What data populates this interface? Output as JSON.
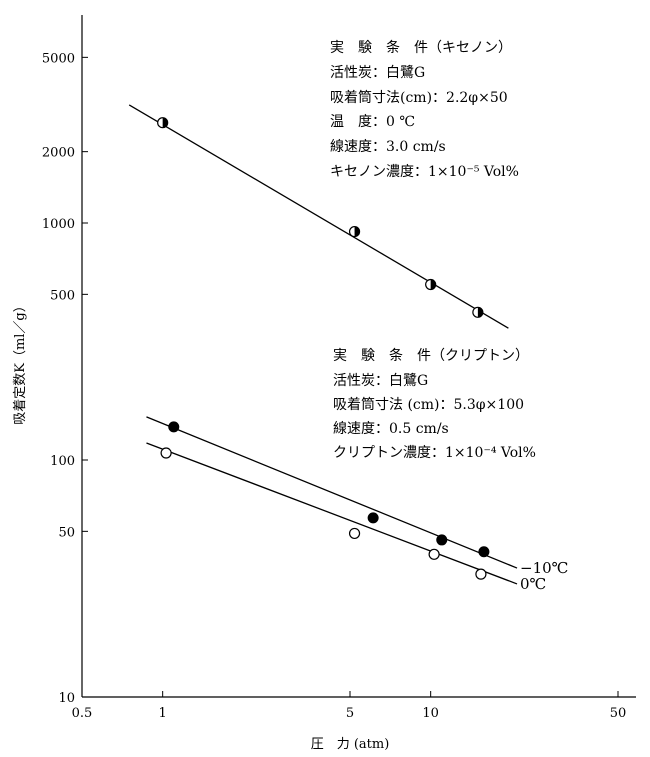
{
  "chart_data": {
    "type": "scatter",
    "title": "",
    "xlabel": "圧　力 (atm)",
    "ylabel": "吸着定数K（ml／g）",
    "x_scale": "log",
    "y_scale": "log",
    "xlim": [
      0.5,
      60
    ],
    "ylim": [
      10,
      6000
    ],
    "x_ticks": [
      0.5,
      1,
      5,
      10,
      50
    ],
    "x_tick_labels": [
      "0.5",
      "1",
      "5",
      "10",
      "50"
    ],
    "y_ticks": [
      10,
      50,
      100,
      500,
      1000,
      2000,
      5000
    ],
    "y_tick_labels": [
      "10",
      "50",
      "100",
      "500",
      "1000",
      "2000",
      "5000"
    ],
    "grid": false,
    "series": [
      {
        "name": "キセノン",
        "marker": "half-filled",
        "points": [
          {
            "x": 1.0,
            "y": 2650
          },
          {
            "x": 5.2,
            "y": 920
          },
          {
            "x": 10.0,
            "y": 550
          },
          {
            "x": 15.0,
            "y": 420
          }
        ],
        "fit_line": [
          {
            "x": 0.75,
            "y": 3150
          },
          {
            "x": 19.5,
            "y": 360
          }
        ]
      },
      {
        "name": "−10℃",
        "marker": "filled",
        "points": [
          {
            "x": 1.1,
            "y": 138
          },
          {
            "x": 6.1,
            "y": 57
          },
          {
            "x": 11.0,
            "y": 46
          },
          {
            "x": 15.8,
            "y": 41
          }
        ],
        "fit_line": [
          {
            "x": 0.87,
            "y": 152
          },
          {
            "x": 21,
            "y": 35
          }
        ]
      },
      {
        "name": "0℃",
        "marker": "open",
        "points": [
          {
            "x": 1.03,
            "y": 107
          },
          {
            "x": 5.2,
            "y": 49
          },
          {
            "x": 10.3,
            "y": 40
          },
          {
            "x": 15.4,
            "y": 33
          }
        ],
        "fit_line": [
          {
            "x": 0.87,
            "y": 118
          },
          {
            "x": 21,
            "y": 30
          }
        ]
      }
    ],
    "annotations": [
      {
        "id": "xenon",
        "lines": [
          "実　験　条　件（キセノン）",
          "活性炭：白鷺G",
          "吸着筒寸法(cm)：2.2φ×50",
          "温　度：0 ℃",
          "線速度：3.0 cm/s",
          "キセノン濃度：1×10⁻⁵ Vol%"
        ]
      },
      {
        "id": "krypton",
        "lines": [
          "実　験　条　件（クリプトン）",
          "活性炭：白鷺G",
          "吸着筒寸法 (cm)：5.3φ×100",
          "線速度：0.5 cm/s",
          "クリプトン濃度：1×10⁻⁴ Vol%"
        ]
      }
    ]
  }
}
